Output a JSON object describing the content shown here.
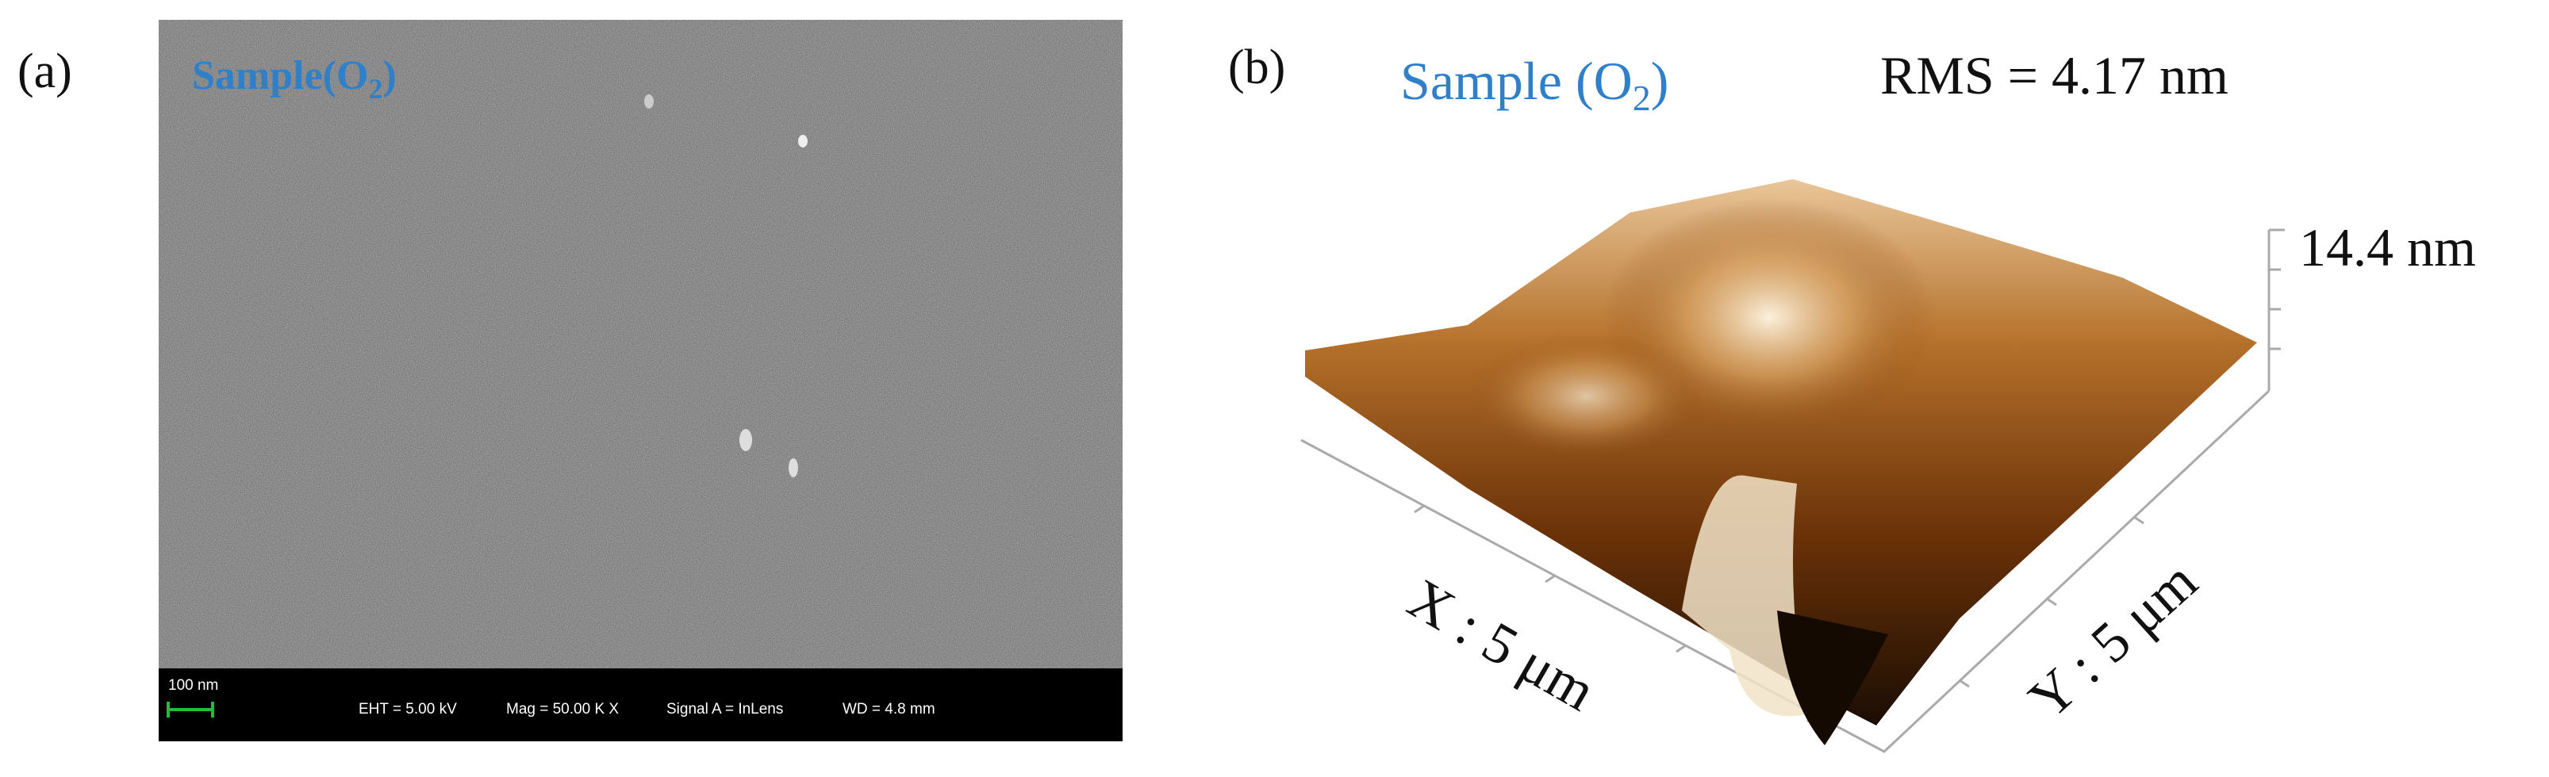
{
  "panel_a": {
    "label": "(a)",
    "sample": {
      "text": "Sample(O",
      "sub": "2",
      "end": ")"
    },
    "info_bar": {
      "scale": "100 nm",
      "eht": "EHT = 5.00 kV",
      "mag": "Mag = 50.00 K X",
      "signal": "Signal A = InLens",
      "wd": "WD = 4.8 mm"
    }
  },
  "panel_b": {
    "label": "(b)",
    "sample": {
      "text": "Sample (O",
      "sub": "2",
      "end": ")"
    },
    "rms": "RMS = 4.17 nm",
    "z_axis": "14.4 nm",
    "x_axis": "X : 5 μm",
    "y_axis": "Y : 5 μm"
  }
}
